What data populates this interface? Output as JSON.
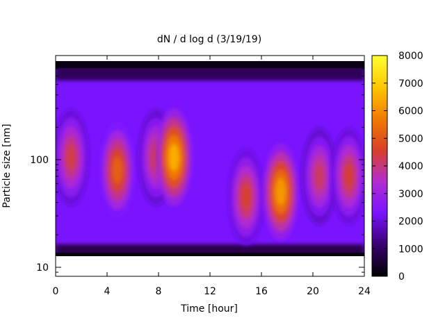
{
  "chart_data": {
    "type": "heatmap",
    "title": "dN / d log d (3/19/19)",
    "xlabel": "Time [hour]",
    "ylabel": "Particle size [nm]",
    "x_range": [
      0,
      24
    ],
    "x_ticks": [
      0,
      4,
      8,
      12,
      16,
      20,
      24
    ],
    "x_tick_labels": [
      "0",
      "4",
      "8",
      "12",
      "16",
      "20",
      "24"
    ],
    "y_scale": "log",
    "y_range": [
      8,
      900
    ],
    "y_ticks": [
      10,
      100
    ],
    "y_tick_labels": [
      "10",
      "100"
    ],
    "colorbar": {
      "range": [
        0,
        8000
      ],
      "ticks": [
        0,
        1000,
        2000,
        3000,
        4000,
        5000,
        6000,
        7000,
        8000
      ],
      "tick_labels": [
        "0",
        "1000",
        "2000",
        "3000",
        "4000",
        "5000",
        "6000",
        "7000",
        "8000"
      ],
      "colormap": [
        "#000000",
        "#3a0070",
        "#7a14ff",
        "#b22ccf",
        "#d8402a",
        "#f07a00",
        "#ffc800",
        "#ffff33"
      ]
    },
    "background": "#7a14ff",
    "peaks": [
      {
        "time": 1.2,
        "size_nm": 105,
        "value": 4400
      },
      {
        "time": 4.8,
        "size_nm": 80,
        "value": 5200
      },
      {
        "time": 7.8,
        "size_nm": 105,
        "value": 4300
      },
      {
        "time": 9.2,
        "size_nm": 105,
        "value": 6500
      },
      {
        "time": 14.8,
        "size_nm": 45,
        "value": 4600
      },
      {
        "time": 17.5,
        "size_nm": 50,
        "value": 6200
      },
      {
        "time": 20.5,
        "size_nm": 70,
        "value": 4200
      },
      {
        "time": 22.8,
        "size_nm": 70,
        "value": 4500
      }
    ]
  }
}
